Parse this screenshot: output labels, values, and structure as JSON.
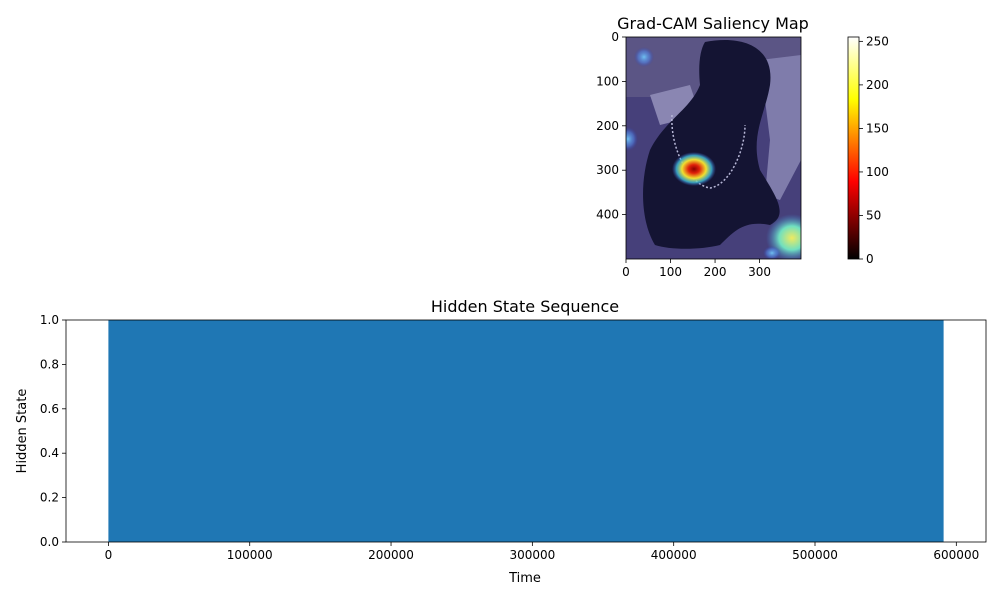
{
  "chart_data": [
    {
      "type": "heatmap",
      "title": "Grad-CAM Saliency Map",
      "xlabel": "",
      "ylabel": "",
      "xlim": [
        0,
        393
      ],
      "ylim": [
        500,
        0
      ],
      "xticks": [
        0,
        100,
        200,
        300
      ],
      "yticks": [
        0,
        100,
        200,
        300,
        400
      ],
      "colorbar": {
        "range": [
          0,
          255
        ],
        "ticks": [
          0,
          50,
          100,
          150,
          200,
          250
        ],
        "colormap": "hot"
      },
      "hotspots": [
        {
          "x": 155,
          "y": 297,
          "intensity": 1.0
        },
        {
          "x": 375,
          "y": 455,
          "intensity": 0.6
        },
        {
          "x": 40,
          "y": 45,
          "intensity": 0.3
        },
        {
          "x": 5,
          "y": 230,
          "intensity": 0.3
        }
      ]
    },
    {
      "type": "area",
      "title": "Hidden State Sequence",
      "xlabel": "Time",
      "ylabel": "Hidden State",
      "xlim": [
        -30000,
        621000
      ],
      "ylim": [
        0,
        1
      ],
      "xticks": [
        0,
        100000,
        200000,
        300000,
        400000,
        500000,
        600000
      ],
      "yticks": [
        0.0,
        0.2,
        0.4,
        0.6,
        0.8,
        1.0
      ],
      "x": [
        0,
        591000
      ],
      "values": [
        1,
        1
      ],
      "color": "#1f77b4"
    }
  ]
}
